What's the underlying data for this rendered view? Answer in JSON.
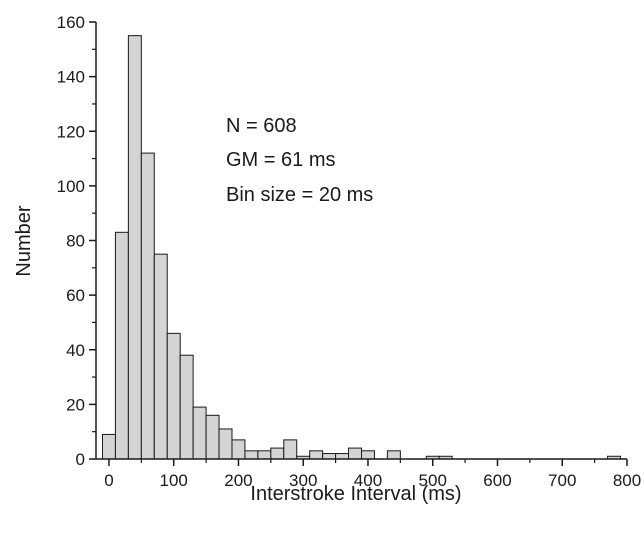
{
  "chart_data": {
    "type": "bar",
    "xlabel": "Interstroke Interval (ms)",
    "ylabel": "Number",
    "xlim": [
      -20,
      800
    ],
    "ylim": [
      0,
      160
    ],
    "xticks": [
      "0",
      "100",
      "200",
      "300",
      "400",
      "500",
      "600",
      "700",
      "800"
    ],
    "yticks": [
      "0",
      "20",
      "40",
      "60",
      "80",
      "100",
      "120",
      "140",
      "160"
    ],
    "bin_width": 20,
    "bins": [
      {
        "start": -10,
        "value": 9
      },
      {
        "start": 10,
        "value": 83
      },
      {
        "start": 30,
        "value": 155
      },
      {
        "start": 50,
        "value": 112
      },
      {
        "start": 70,
        "value": 75
      },
      {
        "start": 90,
        "value": 46
      },
      {
        "start": 110,
        "value": 38
      },
      {
        "start": 130,
        "value": 19
      },
      {
        "start": 150,
        "value": 16
      },
      {
        "start": 170,
        "value": 11
      },
      {
        "start": 190,
        "value": 7
      },
      {
        "start": 210,
        "value": 3
      },
      {
        "start": 230,
        "value": 3
      },
      {
        "start": 250,
        "value": 4
      },
      {
        "start": 270,
        "value": 7
      },
      {
        "start": 290,
        "value": 1
      },
      {
        "start": 310,
        "value": 3
      },
      {
        "start": 330,
        "value": 2
      },
      {
        "start": 350,
        "value": 2
      },
      {
        "start": 370,
        "value": 4
      },
      {
        "start": 390,
        "value": 3
      },
      {
        "start": 410,
        "value": 0
      },
      {
        "start": 430,
        "value": 3
      },
      {
        "start": 490,
        "value": 1
      },
      {
        "start": 510,
        "value": 1
      },
      {
        "start": 770,
        "value": 1
      }
    ],
    "annotations": [
      "N = 608",
      "GM = 61 ms",
      "Bin size = 20 ms"
    ],
    "bar_color": "#d4d4d4",
    "edge_color": "#1a1a1a",
    "grid": false
  }
}
